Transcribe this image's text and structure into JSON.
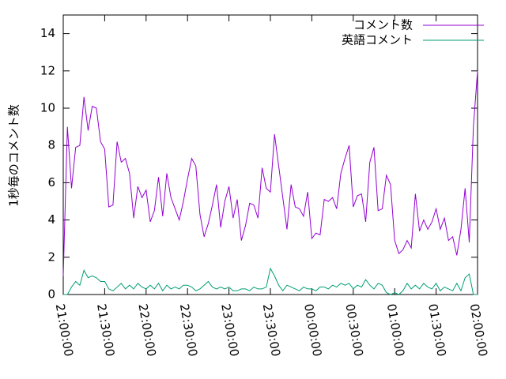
{
  "chart_data": {
    "type": "line",
    "y_label": "1秒毎のコメント数",
    "x": [
      "21:00:00",
      "21:03:00",
      "21:06:00",
      "21:09:00",
      "21:12:00",
      "21:15:00",
      "21:18:00",
      "21:21:00",
      "21:24:00",
      "21:27:00",
      "21:30:00",
      "21:33:00",
      "21:36:00",
      "21:39:00",
      "21:42:00",
      "21:45:00",
      "21:48:00",
      "21:51:00",
      "21:54:00",
      "21:57:00",
      "22:00:00",
      "22:03:00",
      "22:06:00",
      "22:09:00",
      "22:12:00",
      "22:15:00",
      "22:18:00",
      "22:21:00",
      "22:24:00",
      "22:27:00",
      "22:30:00",
      "22:33:00",
      "22:36:00",
      "22:39:00",
      "22:42:00",
      "22:45:00",
      "22:48:00",
      "22:51:00",
      "22:54:00",
      "22:57:00",
      "23:00:00",
      "23:03:00",
      "23:06:00",
      "23:09:00",
      "23:12:00",
      "23:15:00",
      "23:18:00",
      "23:21:00",
      "23:24:00",
      "23:27:00",
      "23:30:00",
      "23:33:00",
      "23:36:00",
      "23:39:00",
      "23:42:00",
      "23:45:00",
      "23:48:00",
      "23:51:00",
      "23:54:00",
      "23:57:00",
      "00:00:00",
      "00:03:00",
      "00:06:00",
      "00:09:00",
      "00:12:00",
      "00:15:00",
      "00:18:00",
      "00:21:00",
      "00:24:00",
      "00:27:00",
      "00:30:00",
      "00:33:00",
      "00:36:00",
      "00:39:00",
      "00:42:00",
      "00:45:00",
      "00:48:00",
      "00:51:00",
      "00:54:00",
      "00:57:00",
      "01:00:00",
      "01:03:00",
      "01:06:00",
      "01:09:00",
      "01:12:00",
      "01:15:00",
      "01:18:00",
      "01:21:00",
      "01:24:00",
      "01:27:00",
      "01:30:00",
      "01:33:00",
      "01:36:00",
      "01:39:00",
      "01:42:00",
      "01:45:00",
      "01:48:00",
      "01:51:00",
      "01:54:00",
      "01:57:00",
      "02:00:00"
    ],
    "series": [
      {
        "name": "コメント数",
        "color": "#9400d3",
        "values": [
          1.0,
          9.0,
          5.7,
          7.9,
          8.0,
          10.6,
          8.8,
          10.1,
          10.0,
          8.2,
          7.8,
          4.7,
          4.8,
          8.2,
          7.1,
          7.3,
          6.5,
          4.1,
          5.8,
          5.2,
          5.6,
          3.9,
          4.5,
          6.3,
          4.2,
          6.5,
          5.2,
          4.6,
          4.0,
          5.0,
          6.2,
          7.3,
          6.9,
          4.3,
          3.1,
          3.8,
          4.8,
          5.9,
          3.6,
          5.0,
          5.8,
          4.1,
          5.1,
          2.9,
          3.7,
          4.9,
          4.8,
          4.1,
          6.8,
          5.7,
          5.5,
          8.6,
          6.9,
          5.2,
          3.5,
          5.9,
          4.7,
          4.6,
          4.2,
          5.5,
          3.0,
          3.3,
          3.2,
          5.1,
          5.0,
          5.2,
          4.6,
          6.5,
          7.3,
          8.0,
          4.7,
          5.3,
          5.4,
          3.9,
          7.1,
          7.9,
          4.5,
          4.6,
          6.4,
          5.9,
          2.9,
          2.2,
          2.4,
          2.9,
          2.5,
          5.4,
          3.4,
          4.0,
          3.5,
          3.9,
          4.6,
          3.5,
          4.1,
          2.9,
          3.1,
          2.1,
          3.5,
          5.7,
          2.8,
          9.0,
          12.0
        ]
      },
      {
        "name": "英語コメント",
        "color": "#009e73",
        "values": [
          0,
          0,
          0.4,
          0.7,
          0.5,
          1.3,
          0.9,
          1.0,
          0.9,
          0.7,
          0.7,
          0.3,
          0.2,
          0.4,
          0.6,
          0.3,
          0.5,
          0.3,
          0.6,
          0.4,
          0.3,
          0.5,
          0.3,
          0.6,
          0.2,
          0.5,
          0.3,
          0.4,
          0.3,
          0.5,
          0.5,
          0.4,
          0.2,
          0.3,
          0.5,
          0.7,
          0.4,
          0.3,
          0.4,
          0.3,
          0.4,
          0.2,
          0.2,
          0.3,
          0.3,
          0.2,
          0.4,
          0.3,
          0.3,
          0.4,
          1.4,
          1.0,
          0.5,
          0.2,
          0.5,
          0.4,
          0.3,
          0.2,
          0.4,
          0.3,
          0.3,
          0.2,
          0.4,
          0.4,
          0.3,
          0.5,
          0.4,
          0.6,
          0.5,
          0.6,
          0.3,
          0.5,
          0.4,
          0.8,
          0.5,
          0.3,
          0.6,
          0.5,
          0.1,
          0.0,
          0.1,
          0.0,
          0.2,
          0.6,
          0.3,
          0.5,
          0.3,
          0.6,
          0.4,
          0.3,
          0.6,
          0.2,
          0.4,
          0.3,
          0.2,
          0.6,
          0.2,
          0.9,
          1.1,
          0.0,
          0.0
        ]
      }
    ],
    "xlim": [
      "21:00:00",
      "02:00:00"
    ],
    "xticks": [
      "21:00:00",
      "21:30:00",
      "22:00:00",
      "22:30:00",
      "23:00:00",
      "23:30:00",
      "00:00:00",
      "00:30:00",
      "01:00:00",
      "01:30:00",
      "02:00:00"
    ],
    "ylim": [
      0,
      15
    ],
    "yticks": [
      0,
      2,
      4,
      6,
      8,
      10,
      12,
      14
    ],
    "legend": "top-right"
  }
}
